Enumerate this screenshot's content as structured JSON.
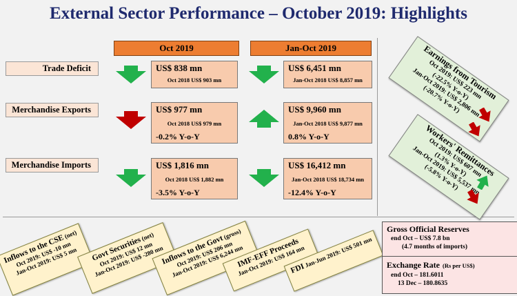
{
  "title": "External Sector Performance – October 2019: Highlights",
  "columns": {
    "oct": "Oct 2019",
    "janoct": "Jan-Oct 2019"
  },
  "rows": {
    "trade_deficit": {
      "label": "Trade Deficit",
      "oct_value": "US$ 838 mn",
      "oct_prev": "Oct 2018 US$ 903 mn",
      "janoct_value": "US$ 6,451 mn",
      "janoct_prev": "Jan-Oct 2018 US$ 8,857 mn"
    },
    "merch_exports": {
      "label": "Merchandise Exports",
      "oct_value": "US$ 977 mn",
      "oct_prev": "Oct 2018 US$ 979 mn",
      "oct_yoy": "-0.2% Y-o-Y",
      "janoct_value": "US$ 9,960 mn",
      "janoct_prev": "Jan-Oct 2018 US$ 9,877 mn",
      "janoct_yoy": "0.8% Y-o-Y"
    },
    "merch_imports": {
      "label": "Merchandise Imports",
      "oct_value": "US$ 1,816 mn",
      "oct_prev": "Oct 2018 US$ 1,882 mn",
      "oct_yoy": "-3.5% Y-o-Y",
      "janoct_value": "US$ 16,412 mn",
      "janoct_prev": "Jan-Oct 2018 US$ 18,734 mn",
      "janoct_yoy": "-12.4% Y-o-Y"
    }
  },
  "tourism": {
    "title": "Earnings from Tourism",
    "lines": [
      "Oct 2019: US$ 223 mn",
      "(-22.5% Y-o-Y)",
      "Jan-Oct 2019: US$ 2,806 mn",
      "(-20.7% Y-o-Y)"
    ]
  },
  "remittances": {
    "title": "Workers' Remittances",
    "lines": [
      "Oct 2019: US$ 607 mn",
      "(1.3% Y-o-Y)",
      "Jan-Oct 2019: US$ 5,537 mn",
      "(-5.8% Y-o-Y)"
    ]
  },
  "notes": {
    "cse": {
      "title": "Inflows to the CSE",
      "qual": "(net)",
      "l1": "Oct 2019: US$ -10 mn",
      "l2": "Jan-Oct 2019: US$ 5 mn"
    },
    "govsec": {
      "title": "Govt Securities",
      "qual": "(net)",
      "l1": "Oct 2019: US$ 12 mn",
      "l2": "Jan-Oct 2019: US$ -280 mn"
    },
    "govinflow": {
      "title": "Inflows to the Govt",
      "qual": "(gross)",
      "l1": "Oct 2019: US$ 206 mn",
      "l2": "Jan-Oct 2019: US$ 6,244 mn"
    },
    "imf": {
      "title": "IMF-EFF Proceeds",
      "l1": "Jan-Oct 2019: US$ 164 mn"
    },
    "fdi": {
      "title": "FDI",
      "l1": "Jan-Jun 2019: US$ 501 mn"
    }
  },
  "reserves": {
    "title": "Gross Official Reserves",
    "l1": "end Oct – US$ 7.8 bn",
    "l2": "(4.7 months of imports)"
  },
  "exchange": {
    "title": "Exchange Rate",
    "unit": "(Rs per US$)",
    "l1": "end Oct – 181.6011",
    "l2": "13 Dec – 180.8635"
  },
  "colors": {
    "title": "#1f2a6e",
    "header": "#ed7d31",
    "value_box": "#f8cbad",
    "label_box": "#fbe5d6",
    "green": "#22b14c",
    "red": "#c00000",
    "note": "#fff2cc",
    "green_note": "#e2f0d9",
    "pink_box": "#fce4e4"
  },
  "icons": {
    "down": "green-down-arrow",
    "down_red": "red-down-arrow",
    "up": "green-up-arrow"
  }
}
